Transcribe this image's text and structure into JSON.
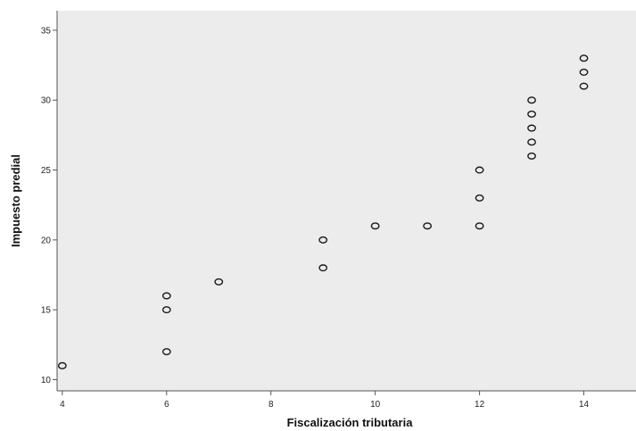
{
  "chart_data": {
    "type": "scatter",
    "title": "",
    "xlabel": "Fiscalización tributaria",
    "ylabel": "Impuesto predial",
    "xlim": [
      3.9,
      15.0
    ],
    "ylim": [
      9.2,
      36.4
    ],
    "x_ticks": [
      {
        "value": 4,
        "label": "4"
      },
      {
        "value": 6,
        "label": "6"
      },
      {
        "value": 8,
        "label": "8"
      },
      {
        "value": 10,
        "label": "10"
      },
      {
        "value": 12,
        "label": "12"
      },
      {
        "value": 14,
        "label": "14"
      }
    ],
    "y_ticks": [
      {
        "value": 10,
        "label": "10"
      },
      {
        "value": 15,
        "label": "15"
      },
      {
        "value": 20,
        "label": "20"
      },
      {
        "value": 25,
        "label": "25"
      },
      {
        "value": 30,
        "label": "30"
      },
      {
        "value": 35,
        "label": "35"
      }
    ],
    "grid": false,
    "background": "#ececec",
    "marker": "open-circle",
    "points": [
      {
        "x": 4,
        "y": 11
      },
      {
        "x": 6,
        "y": 12
      },
      {
        "x": 6,
        "y": 15
      },
      {
        "x": 6,
        "y": 16
      },
      {
        "x": 7,
        "y": 17
      },
      {
        "x": 9,
        "y": 18
      },
      {
        "x": 9,
        "y": 20
      },
      {
        "x": 10,
        "y": 21
      },
      {
        "x": 11,
        "y": 21
      },
      {
        "x": 12,
        "y": 21
      },
      {
        "x": 12,
        "y": 23
      },
      {
        "x": 12,
        "y": 25
      },
      {
        "x": 13,
        "y": 26
      },
      {
        "x": 13,
        "y": 27
      },
      {
        "x": 13,
        "y": 28
      },
      {
        "x": 13,
        "y": 29
      },
      {
        "x": 13,
        "y": 30
      },
      {
        "x": 14,
        "y": 31
      },
      {
        "x": 14,
        "y": 32
      },
      {
        "x": 14,
        "y": 33
      }
    ]
  }
}
